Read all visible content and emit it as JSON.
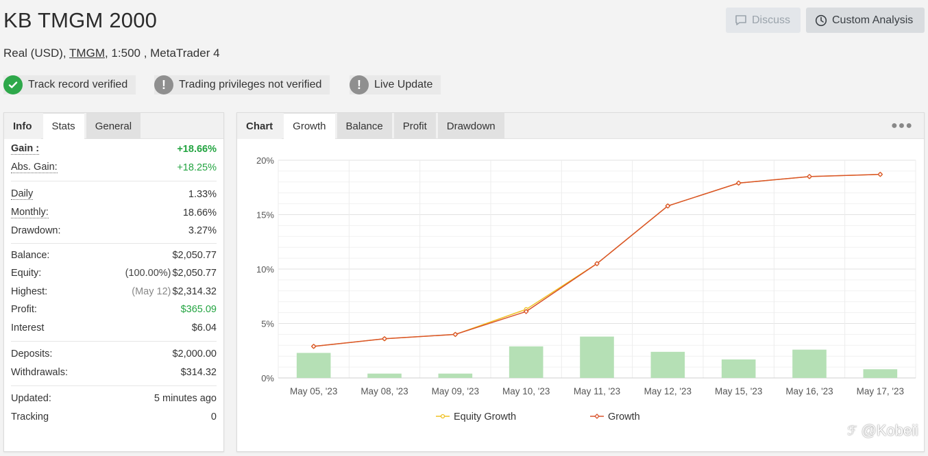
{
  "header": {
    "title": "KB TMGM 2000",
    "account_type": "Real (USD),",
    "broker": "TMGM",
    "leverage_platform": ", 1:500 , MetaTrader 4",
    "discuss_label": "Discuss",
    "custom_analysis_label": "Custom Analysis"
  },
  "badges": [
    {
      "label": "Track record verified",
      "icon": "check-icon",
      "color": "#2ea84a"
    },
    {
      "label": "Trading privileges not verified",
      "icon": "exclamation-icon",
      "color": "#8f8f8f"
    },
    {
      "label": "Live Update",
      "icon": "exclamation-icon",
      "color": "#8f8f8f"
    }
  ],
  "left_tabs": [
    "Info",
    "Stats",
    "General"
  ],
  "stats": {
    "gain": {
      "label": "Gain :",
      "value": "+18.66%"
    },
    "abs_gain": {
      "label": "Abs. Gain:",
      "value": "+18.25%"
    },
    "daily": {
      "label": "Daily",
      "value": "1.33%"
    },
    "monthly": {
      "label": "Monthly:",
      "value": "18.66%"
    },
    "drawdown": {
      "label": "Drawdown:",
      "value": "3.27%"
    },
    "balance": {
      "label": "Balance:",
      "value": "$2,050.77"
    },
    "equity": {
      "label": "Equity:",
      "note": "(100.00%)",
      "value": "$2,050.77"
    },
    "highest": {
      "label": "Highest:",
      "note": "(May 12)",
      "value": "$2,314.32"
    },
    "profit": {
      "label": "Profit:",
      "value": "$365.09"
    },
    "interest": {
      "label": "Interest",
      "value": "$6.04"
    },
    "deposits": {
      "label": "Deposits:",
      "value": "$2,000.00"
    },
    "withdrawals": {
      "label": "Withdrawals:",
      "value": "$314.32"
    },
    "updated": {
      "label": "Updated:",
      "value": "5 minutes ago"
    },
    "tracking": {
      "label": "Tracking",
      "value": "0"
    }
  },
  "chart_tabs": [
    "Chart",
    "Growth",
    "Balance",
    "Profit",
    "Drawdown"
  ],
  "watermark": "@Kobeii",
  "colors": {
    "growth_line": "#d9532c",
    "equity_line": "#f0c020",
    "bars": "#b5e0b5",
    "positive": "#23a441"
  },
  "chart_data": {
    "type": "line",
    "categories": [
      "May 05, '23",
      "May 08, '23",
      "May 09, '23",
      "May 10, '23",
      "May 11, '23",
      "May 12, '23",
      "May 15, '23",
      "May 16, '23",
      "May 17, '23"
    ],
    "series": [
      {
        "name": "Equity Growth",
        "type": "line",
        "values": [
          2.9,
          3.6,
          4.0,
          6.3,
          10.5,
          15.8,
          17.9,
          18.5,
          18.7
        ]
      },
      {
        "name": "Growth",
        "type": "line",
        "values": [
          2.9,
          3.6,
          4.0,
          6.1,
          10.5,
          15.8,
          17.9,
          18.5,
          18.7
        ]
      },
      {
        "name": "",
        "type": "bar",
        "values": [
          2.3,
          0.4,
          0.4,
          2.9,
          3.8,
          2.4,
          1.7,
          2.6,
          0.8
        ]
      }
    ],
    "yticks": [
      "0%",
      "5%",
      "10%",
      "15%",
      "20%"
    ],
    "ylim": [
      0,
      20
    ],
    "grid": true,
    "legend": "bottom"
  }
}
